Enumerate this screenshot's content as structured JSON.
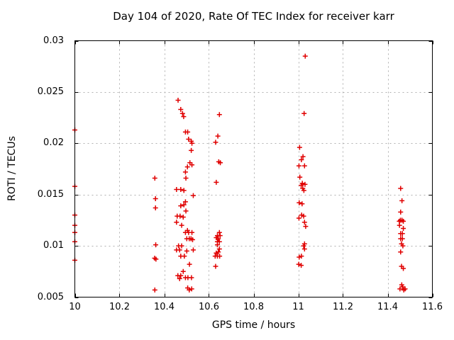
{
  "window": {
    "background": "#ffffff",
    "foreground": "#000000"
  },
  "chart_data": {
    "type": "scatter",
    "title": "Day 104 of 2020, Rate Of TEC Index for receiver karr",
    "xlabel": "GPS time / hours",
    "ylabel": "ROTI / TECUs",
    "xlim": [
      10,
      11.6
    ],
    "ylim": [
      0.005,
      0.03
    ],
    "grid": true,
    "legend": "none",
    "x_ticks": {
      "values": [
        10,
        10.2,
        10.4,
        10.6,
        10.8,
        11,
        11.2,
        11.4,
        11.6
      ],
      "labels": [
        "10",
        "10.2",
        "10.4",
        "10.6",
        "10.8",
        "11",
        "11.2",
        "11.4",
        "11.6"
      ]
    },
    "y_ticks": {
      "values": [
        0.005,
        0.01,
        0.015,
        0.02,
        0.025,
        0.03
      ],
      "labels": [
        "0.005",
        "0.01",
        "0.015",
        "0.02",
        "0.025",
        "0.03"
      ]
    },
    "marker": {
      "shape": "plus",
      "color": "#e00000",
      "size": 7
    },
    "grid_color": "#b0b0b0",
    "axis_color": "#000000",
    "series": [
      {
        "name": "ROTI",
        "points": [
          [
            10.0,
            0.0213
          ],
          [
            10.0,
            0.0158
          ],
          [
            10.0,
            0.013
          ],
          [
            10.0,
            0.012
          ],
          [
            10.0,
            0.0113
          ],
          [
            10.0,
            0.0104
          ],
          [
            10.0,
            0.0086
          ],
          [
            10.358,
            0.0166
          ],
          [
            10.361,
            0.0146
          ],
          [
            10.361,
            0.0137
          ],
          [
            10.362,
            0.0101
          ],
          [
            10.357,
            0.0088
          ],
          [
            10.363,
            0.0087
          ],
          [
            10.358,
            0.0057
          ],
          [
            10.462,
            0.0242
          ],
          [
            10.474,
            0.0233
          ],
          [
            10.482,
            0.0229
          ],
          [
            10.487,
            0.0226
          ],
          [
            10.495,
            0.0211
          ],
          [
            10.505,
            0.0211
          ],
          [
            10.509,
            0.0204
          ],
          [
            10.521,
            0.0202
          ],
          [
            10.524,
            0.02
          ],
          [
            10.521,
            0.0193
          ],
          [
            10.515,
            0.0181
          ],
          [
            10.524,
            0.0179
          ],
          [
            10.504,
            0.0177
          ],
          [
            10.495,
            0.0172
          ],
          [
            10.497,
            0.0166
          ],
          [
            10.455,
            0.0155
          ],
          [
            10.474,
            0.0155
          ],
          [
            10.488,
            0.0154
          ],
          [
            10.53,
            0.0149
          ],
          [
            10.495,
            0.0143
          ],
          [
            10.488,
            0.014
          ],
          [
            10.474,
            0.0139
          ],
          [
            10.497,
            0.0134
          ],
          [
            10.458,
            0.0129
          ],
          [
            10.471,
            0.0129
          ],
          [
            10.485,
            0.0128
          ],
          [
            10.455,
            0.0123
          ],
          [
            10.478,
            0.012
          ],
          [
            10.504,
            0.0115
          ],
          [
            10.495,
            0.0113
          ],
          [
            10.509,
            0.0113
          ],
          [
            10.524,
            0.0113
          ],
          [
            10.501,
            0.0107
          ],
          [
            10.512,
            0.0107
          ],
          [
            10.52,
            0.0107
          ],
          [
            10.527,
            0.0106
          ],
          [
            10.464,
            0.01
          ],
          [
            10.478,
            0.01
          ],
          [
            10.455,
            0.0096
          ],
          [
            10.469,
            0.0096
          ],
          [
            10.501,
            0.0095
          ],
          [
            10.53,
            0.0096
          ],
          [
            10.474,
            0.009
          ],
          [
            10.49,
            0.009
          ],
          [
            10.513,
            0.0082
          ],
          [
            10.485,
            0.0075
          ],
          [
            10.461,
            0.0071
          ],
          [
            10.474,
            0.0071
          ],
          [
            10.469,
            0.0068
          ],
          [
            10.495,
            0.0069
          ],
          [
            10.506,
            0.0069
          ],
          [
            10.522,
            0.0069
          ],
          [
            10.505,
            0.0059
          ],
          [
            10.512,
            0.0057
          ],
          [
            10.523,
            0.0058
          ],
          [
            10.647,
            0.0228
          ],
          [
            10.64,
            0.0207
          ],
          [
            10.63,
            0.0201
          ],
          [
            10.644,
            0.0182
          ],
          [
            10.651,
            0.0181
          ],
          [
            10.633,
            0.0162
          ],
          [
            10.647,
            0.0113
          ],
          [
            10.638,
            0.011
          ],
          [
            10.65,
            0.011
          ],
          [
            10.633,
            0.0108
          ],
          [
            10.642,
            0.0107
          ],
          [
            10.638,
            0.0104
          ],
          [
            10.647,
            0.0104
          ],
          [
            10.638,
            0.0101
          ],
          [
            10.647,
            0.0097
          ],
          [
            10.633,
            0.0093
          ],
          [
            10.642,
            0.0094
          ],
          [
            10.628,
            0.009
          ],
          [
            10.638,
            0.009
          ],
          [
            10.648,
            0.009
          ],
          [
            10.63,
            0.008
          ],
          [
            11.031,
            0.0285
          ],
          [
            11.026,
            0.0229
          ],
          [
            11.006,
            0.0196
          ],
          [
            11.021,
            0.0187
          ],
          [
            11.014,
            0.0184
          ],
          [
            11.003,
            0.0178
          ],
          [
            11.028,
            0.0178
          ],
          [
            11.007,
            0.0167
          ],
          [
            11.018,
            0.0161
          ],
          [
            11.03,
            0.016
          ],
          [
            11.013,
            0.0159
          ],
          [
            11.02,
            0.0156
          ],
          [
            11.025,
            0.0154
          ],
          [
            11.004,
            0.0142
          ],
          [
            11.017,
            0.0141
          ],
          [
            11.015,
            0.013
          ],
          [
            11.024,
            0.0129
          ],
          [
            11.003,
            0.0127
          ],
          [
            11.028,
            0.0123
          ],
          [
            11.033,
            0.0119
          ],
          [
            11.028,
            0.0102
          ],
          [
            11.024,
            0.01
          ],
          [
            11.028,
            0.0097
          ],
          [
            11.004,
            0.0089
          ],
          [
            11.014,
            0.009
          ],
          [
            11.002,
            0.0082
          ],
          [
            11.013,
            0.0081
          ],
          [
            11.458,
            0.0156
          ],
          [
            11.464,
            0.0144
          ],
          [
            11.458,
            0.0133
          ],
          [
            11.452,
            0.0124
          ],
          [
            11.457,
            0.0125
          ],
          [
            11.464,
            0.0125
          ],
          [
            11.47,
            0.0124
          ],
          [
            11.453,
            0.012
          ],
          [
            11.47,
            0.0117
          ],
          [
            11.458,
            0.0112
          ],
          [
            11.466,
            0.0112
          ],
          [
            11.458,
            0.0107
          ],
          [
            11.466,
            0.0107
          ],
          [
            11.462,
            0.0102
          ],
          [
            11.468,
            0.01
          ],
          [
            11.458,
            0.0094
          ],
          [
            11.462,
            0.008
          ],
          [
            11.47,
            0.0078
          ],
          [
            11.463,
            0.0062
          ],
          [
            11.455,
            0.0058
          ],
          [
            11.467,
            0.006
          ],
          [
            11.472,
            0.0057
          ],
          [
            11.478,
            0.0058
          ]
        ]
      }
    ]
  }
}
